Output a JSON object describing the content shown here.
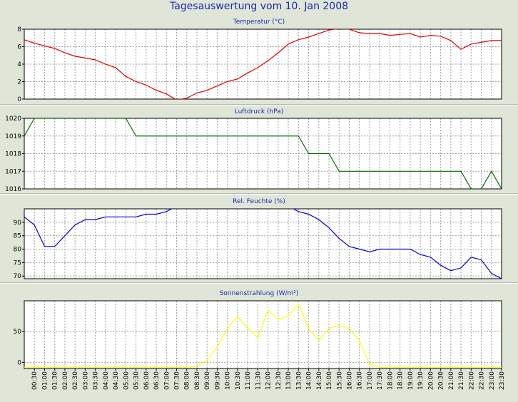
{
  "title": "Tagesauswertung vom 10. Jan 2008",
  "x_labels": [
    "00:30",
    "01:00",
    "01:30",
    "02:00",
    "02:30",
    "03:00",
    "03:30",
    "04:00",
    "04:30",
    "05:00",
    "05:30",
    "06:00",
    "06:30",
    "07:00",
    "07:30",
    "08:00",
    "08:30",
    "09:00",
    "09:30",
    "10:00",
    "10:30",
    "11:00",
    "11:30",
    "12:00",
    "12:30",
    "13:00",
    "13:30",
    "14:00",
    "14:30",
    "15:00",
    "15:30",
    "16:00",
    "16:30",
    "17:00",
    "17:30",
    "18:00",
    "18:30",
    "19:00",
    "19:30",
    "20:00",
    "20:30",
    "21:00",
    "21:30",
    "22:00",
    "22:30",
    "23:00",
    "23:30"
  ],
  "chart_data": [
    {
      "type": "line",
      "title": "Temperatur (°C)",
      "color": "#e00000",
      "ylim": [
        0,
        8
      ],
      "yticks": [
        0,
        2,
        4,
        6,
        8
      ],
      "x": [
        0,
        0.5,
        1,
        1.5,
        2,
        2.5,
        3,
        3.5,
        4,
        4.5,
        5,
        5.5,
        6,
        6.5,
        7,
        7.5,
        8,
        8.5,
        9,
        9.5,
        10,
        10.5,
        11,
        11.5,
        12,
        12.5,
        13,
        13.5,
        14,
        14.5,
        15,
        15.5,
        16,
        16.5,
        17,
        17.5,
        18,
        18.5,
        19,
        19.5,
        20,
        20.5,
        21,
        21.5,
        22,
        22.5,
        23,
        23.5
      ],
      "y": [
        6.8,
        6.4,
        6.1,
        5.8,
        5.3,
        4.9,
        4.7,
        4.5,
        4.0,
        3.6,
        2.6,
        2.0,
        1.6,
        1.0,
        0.6,
        -0.1,
        0.1,
        0.7,
        1.0,
        1.5,
        2.0,
        2.3,
        3.0,
        3.6,
        4.4,
        5.3,
        6.3,
        6.8,
        7.1,
        7.5,
        7.9,
        8.1,
        8.0,
        7.6,
        7.5,
        7.5,
        7.3,
        7.4,
        7.5,
        7.1,
        7.3,
        7.2,
        6.7,
        5.7,
        6.3,
        6.5,
        6.7,
        6.7
      ]
    },
    {
      "type": "line",
      "title": "Luftdruck (hPa)",
      "color": "#007000",
      "ylim": [
        1016,
        1020
      ],
      "yticks": [
        1016,
        1017,
        1018,
        1019,
        1020
      ],
      "x": [
        0,
        0.5,
        1,
        1.5,
        2,
        2.5,
        3,
        3.5,
        4,
        4.5,
        5,
        5.5,
        6,
        6.5,
        7,
        7.5,
        8,
        8.5,
        9,
        9.5,
        10,
        10.5,
        11,
        11.5,
        12,
        12.5,
        13,
        13.5,
        14,
        14.5,
        15,
        15.5,
        16,
        16.5,
        17,
        17.5,
        18,
        18.5,
        19,
        19.5,
        20,
        20.5,
        21,
        21.5,
        22,
        22.5,
        23,
        23.5
      ],
      "y": [
        1019,
        1020,
        1020,
        1020,
        1020,
        1020,
        1020,
        1020,
        1020,
        1020,
        1020,
        1019,
        1019,
        1019,
        1019,
        1019,
        1019,
        1019,
        1019,
        1019,
        1019,
        1019,
        1019,
        1019,
        1019,
        1019,
        1019,
        1019,
        1018,
        1018,
        1018,
        1017,
        1017,
        1017,
        1017,
        1017,
        1017,
        1017,
        1017,
        1017,
        1017,
        1017,
        1017,
        1017,
        1016,
        1016,
        1017,
        1016
      ]
    },
    {
      "type": "line",
      "title": "Rel. Feuchte (%)",
      "color": "#0000d0",
      "ylim": [
        69,
        95
      ],
      "yticks": [
        70,
        75,
        80,
        85,
        90
      ],
      "x": [
        0,
        0.5,
        1,
        1.5,
        2,
        2.5,
        3,
        3.5,
        4,
        4.5,
        5,
        5.5,
        6,
        6.5,
        7,
        7.5,
        8,
        8.5,
        9,
        9.5,
        10,
        10.5,
        11,
        11.5,
        12,
        12.5,
        13,
        13.5,
        14,
        14.5,
        15,
        15.5,
        16,
        16.5,
        17,
        17.5,
        18,
        18.5,
        19,
        19.5,
        20,
        20.5,
        21,
        21.5,
        22,
        22.5,
        23,
        23.5
      ],
      "y": [
        92,
        89,
        81,
        81,
        85,
        89,
        91,
        91,
        92,
        92,
        92,
        92,
        93,
        93,
        94,
        96,
        97,
        97,
        97,
        97,
        97,
        97,
        97,
        97,
        97,
        97,
        96,
        94,
        93,
        91,
        88,
        84,
        81,
        80,
        79,
        80,
        80,
        80,
        80,
        78,
        77,
        74,
        72,
        73,
        77,
        76,
        71,
        69
      ]
    },
    {
      "type": "line",
      "title": "Sonnenstrahlung (W/m²)",
      "color": "#ffff00",
      "ylim": [
        -10,
        100
      ],
      "yticks": [
        0,
        50
      ],
      "x": [
        0,
        0.5,
        1,
        1.5,
        2,
        2.5,
        3,
        3.5,
        4,
        4.5,
        5,
        5.5,
        6,
        6.5,
        7,
        7.5,
        8,
        8.5,
        9,
        9.5,
        10,
        10.5,
        11,
        11.5,
        12,
        12.5,
        13,
        13.5,
        14,
        14.5,
        15,
        15.5,
        16,
        16.5,
        17,
        17.5,
        18,
        18.5,
        19,
        19.5,
        20,
        20.5,
        21,
        21.5,
        22,
        22.5,
        23,
        23.5
      ],
      "y": [
        -8,
        -8,
        -8,
        -8,
        -8,
        -8,
        -8,
        -8,
        -8,
        -8,
        -8,
        -8,
        -8,
        -8,
        -8,
        -8,
        -8,
        -6,
        3,
        25,
        55,
        75,
        55,
        40,
        85,
        70,
        75,
        95,
        55,
        35,
        55,
        60,
        55,
        35,
        -3,
        -8,
        -8,
        -8,
        -8,
        -8,
        -8,
        -8,
        -8,
        -8,
        -8,
        -8,
        -8,
        -8
      ]
    }
  ]
}
